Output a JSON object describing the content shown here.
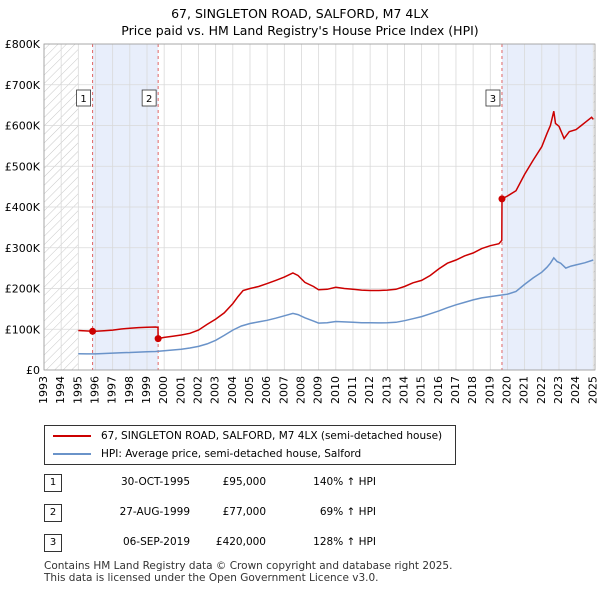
{
  "chart_data": {
    "type": "line",
    "title": "67, SINGLETON ROAD, SALFORD, M7 4LX",
    "subtitle": "Price paid vs. HM Land Registry's House Price Index (HPI)",
    "xlabel": "",
    "ylabel": "",
    "xlim": [
      1993,
      2025.1
    ],
    "ylim": [
      0,
      800000
    ],
    "x_ticks": [
      1993,
      1994,
      1995,
      1996,
      1997,
      1998,
      1999,
      2000,
      2001,
      2002,
      2003,
      2004,
      2005,
      2006,
      2007,
      2008,
      2009,
      2010,
      2011,
      2012,
      2013,
      2014,
      2015,
      2016,
      2017,
      2018,
      2019,
      2020,
      2021,
      2022,
      2023,
      2024,
      2025
    ],
    "x_tick_labels": [
      "1993",
      "1994",
      "1995",
      "1996",
      "1997",
      "1998",
      "1999",
      "2000",
      "2001",
      "2002",
      "2003",
      "2004",
      "2005",
      "2006",
      "2007",
      "2008",
      "2009",
      "2010",
      "2011",
      "2012",
      "2013",
      "2014",
      "2015",
      "2016",
      "2017",
      "2018",
      "2019",
      "2020",
      "2021",
      "2022",
      "2023",
      "2024",
      "2025"
    ],
    "y_ticks": [
      0,
      100000,
      200000,
      300000,
      400000,
      500000,
      600000,
      700000,
      800000
    ],
    "y_tick_labels": [
      "£0",
      "£100K",
      "£200K",
      "£300K",
      "£400K",
      "£500K",
      "£600K",
      "£700K",
      "£800K"
    ],
    "grid": true,
    "hatched_ranges": [
      [
        1993,
        1995.0
      ],
      [
        2025.0,
        2025.1
      ]
    ],
    "shaded_ranges": [
      [
        1995.83,
        1999.65
      ],
      [
        2019.68,
        2025.0
      ]
    ],
    "series": [
      {
        "name": "67, SINGLETON ROAD, SALFORD, M7 4LX (semi-detached house)",
        "color": "#cc0000",
        "points": [
          [
            1995.0,
            97000
          ],
          [
            1995.83,
            95000
          ],
          [
            1996.0,
            95000
          ],
          [
            1996.5,
            96500
          ],
          [
            1997.0,
            98000
          ],
          [
            1997.5,
            100500
          ],
          [
            1998.0,
            102500
          ],
          [
            1998.5,
            104000
          ],
          [
            1999.0,
            105000
          ],
          [
            1999.5,
            105500
          ],
          [
            1999.64,
            104500
          ],
          [
            1999.65,
            77000
          ],
          [
            2000.0,
            80000
          ],
          [
            2000.5,
            83000
          ],
          [
            2001.0,
            86000
          ],
          [
            2001.5,
            90000
          ],
          [
            2002.0,
            98000
          ],
          [
            2002.5,
            112000
          ],
          [
            2003.0,
            125000
          ],
          [
            2003.5,
            140000
          ],
          [
            2004.0,
            163000
          ],
          [
            2004.3,
            180000
          ],
          [
            2004.6,
            195000
          ],
          [
            2005.0,
            200000
          ],
          [
            2005.5,
            205000
          ],
          [
            2006.0,
            212000
          ],
          [
            2006.5,
            220000
          ],
          [
            2007.0,
            228000
          ],
          [
            2007.5,
            238000
          ],
          [
            2007.8,
            232000
          ],
          [
            2008.2,
            215000
          ],
          [
            2008.7,
            205000
          ],
          [
            2009.0,
            197000
          ],
          [
            2009.5,
            198000
          ],
          [
            2010.0,
            203000
          ],
          [
            2010.5,
            200000
          ],
          [
            2011.0,
            198000
          ],
          [
            2011.5,
            196000
          ],
          [
            2012.0,
            195000
          ],
          [
            2012.5,
            195000
          ],
          [
            2013.0,
            196000
          ],
          [
            2013.5,
            198000
          ],
          [
            2014.0,
            205000
          ],
          [
            2014.5,
            214000
          ],
          [
            2015.0,
            220000
          ],
          [
            2015.5,
            232000
          ],
          [
            2016.0,
            248000
          ],
          [
            2016.5,
            262000
          ],
          [
            2017.0,
            270000
          ],
          [
            2017.5,
            280000
          ],
          [
            2018.0,
            287000
          ],
          [
            2018.5,
            298000
          ],
          [
            2019.0,
            305000
          ],
          [
            2019.5,
            310000
          ],
          [
            2019.67,
            318000
          ],
          [
            2019.68,
            420000
          ],
          [
            2020.0,
            427000
          ],
          [
            2020.5,
            440000
          ],
          [
            2021.0,
            480000
          ],
          [
            2021.5,
            515000
          ],
          [
            2022.0,
            548000
          ],
          [
            2022.3,
            580000
          ],
          [
            2022.5,
            600000
          ],
          [
            2022.7,
            635000
          ],
          [
            2022.8,
            605000
          ],
          [
            2023.0,
            598000
          ],
          [
            2023.3,
            568000
          ],
          [
            2023.6,
            585000
          ],
          [
            2024.0,
            590000
          ],
          [
            2024.3,
            600000
          ],
          [
            2024.6,
            610000
          ],
          [
            2024.9,
            620000
          ],
          [
            2025.0,
            615000
          ]
        ]
      },
      {
        "name": "HPI: Average price, semi-detached house, Salford",
        "color": "#6a93c9",
        "points": [
          [
            1995.0,
            40000
          ],
          [
            1995.5,
            39500
          ],
          [
            1996.0,
            39500
          ],
          [
            1996.5,
            40500
          ],
          [
            1997.0,
            41500
          ],
          [
            1997.5,
            42500
          ],
          [
            1998.0,
            43000
          ],
          [
            1998.5,
            44000
          ],
          [
            1999.0,
            45000
          ],
          [
            1999.5,
            45500
          ],
          [
            2000.0,
            47000
          ],
          [
            2000.5,
            49000
          ],
          [
            2001.0,
            51000
          ],
          [
            2001.5,
            54000
          ],
          [
            2002.0,
            58000
          ],
          [
            2002.5,
            64000
          ],
          [
            2003.0,
            73000
          ],
          [
            2003.5,
            85000
          ],
          [
            2004.0,
            98000
          ],
          [
            2004.5,
            108000
          ],
          [
            2005.0,
            114000
          ],
          [
            2005.5,
            118000
          ],
          [
            2006.0,
            122000
          ],
          [
            2006.5,
            127000
          ],
          [
            2007.0,
            133000
          ],
          [
            2007.5,
            139000
          ],
          [
            2007.8,
            136000
          ],
          [
            2008.2,
            128000
          ],
          [
            2008.7,
            120000
          ],
          [
            2009.0,
            115000
          ],
          [
            2009.5,
            116000
          ],
          [
            2010.0,
            119000
          ],
          [
            2010.5,
            118000
          ],
          [
            2011.0,
            117000
          ],
          [
            2011.5,
            116000
          ],
          [
            2012.0,
            116000
          ],
          [
            2012.5,
            115500
          ],
          [
            2013.0,
            116000
          ],
          [
            2013.5,
            117000
          ],
          [
            2014.0,
            121000
          ],
          [
            2014.5,
            126000
          ],
          [
            2015.0,
            131000
          ],
          [
            2015.5,
            138000
          ],
          [
            2016.0,
            145000
          ],
          [
            2016.5,
            153000
          ],
          [
            2017.0,
            160000
          ],
          [
            2017.5,
            166000
          ],
          [
            2018.0,
            172000
          ],
          [
            2018.5,
            177000
          ],
          [
            2019.0,
            180000
          ],
          [
            2019.5,
            183000
          ],
          [
            2020.0,
            186000
          ],
          [
            2020.5,
            193000
          ],
          [
            2021.0,
            210000
          ],
          [
            2021.5,
            226000
          ],
          [
            2022.0,
            240000
          ],
          [
            2022.3,
            252000
          ],
          [
            2022.5,
            262000
          ],
          [
            2022.7,
            275000
          ],
          [
            2022.9,
            266000
          ],
          [
            2023.1,
            262000
          ],
          [
            2023.4,
            250000
          ],
          [
            2023.7,
            255000
          ],
          [
            2024.0,
            258000
          ],
          [
            2024.5,
            263000
          ],
          [
            2025.0,
            270000
          ]
        ]
      }
    ],
    "sale_markers": [
      {
        "label": "1",
        "x": 1995.83,
        "y": 95000
      },
      {
        "label": "2",
        "x": 1999.65,
        "y": 77000
      },
      {
        "label": "3",
        "x": 2019.68,
        "y": 420000
      }
    ]
  },
  "legend": {
    "red_label": "67, SINGLETON ROAD, SALFORD, M7 4LX (semi-detached house)",
    "blue_label": "HPI: Average price, semi-detached house, Salford"
  },
  "transactions": [
    {
      "num": "1",
      "date": "30-OCT-1995",
      "price": "£95,000",
      "hpi": "140% ↑ HPI"
    },
    {
      "num": "2",
      "date": "27-AUG-1999",
      "price": "£77,000",
      "hpi": "69% ↑ HPI"
    },
    {
      "num": "3",
      "date": "06-SEP-2019",
      "price": "£420,000",
      "hpi": "128% ↑ HPI"
    }
  ],
  "footer": {
    "line1": "Contains HM Land Registry data © Crown copyright and database right 2025.",
    "line2": "This data is licensed under the Open Government Licence v3.0."
  }
}
